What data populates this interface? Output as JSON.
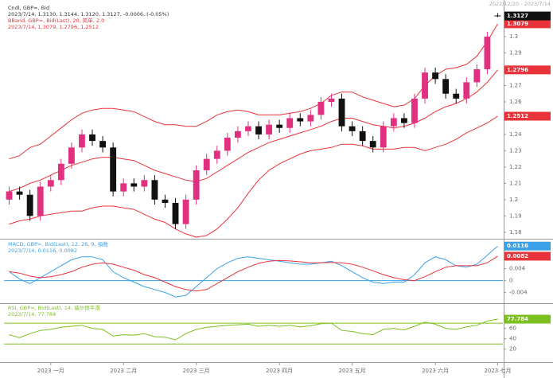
{
  "chart_data": [
    {
      "type": "candlestick",
      "title": "Cndl, GBP=, Bid",
      "subtitle": "2023/7/14, 1.3130, 1.3144, 1.3120, 1.3127, -0.0006, (-0.05%)",
      "bands_title": "BBand, GBP=, Bid(Last), 20, 简单, 2.0",
      "bands_subtitle": "2023/7/14, 1.3079, 1.2796, 1.2512",
      "date_range": "2022/12/20 - 2023/7/14",
      "up_color": "#e0307f",
      "down_color": "#111111",
      "categories": [
        null,
        null,
        null,
        null,
        "2023 一月",
        null,
        null,
        null,
        null,
        null,
        null,
        "2023 二月",
        null,
        null,
        null,
        null,
        null,
        null,
        "2023 三月",
        null,
        null,
        null,
        null,
        null,
        null,
        null,
        "2023 四月",
        null,
        null,
        null,
        null,
        null,
        null,
        "2023 五月",
        null,
        null,
        null,
        null,
        null,
        null,
        null,
        "2023 六月",
        null,
        null,
        null,
        null,
        null,
        "2023 七月"
      ],
      "open": [
        1.2,
        1.205,
        1.203,
        1.19,
        1.208,
        1.212,
        1.222,
        1.232,
        1.24,
        1.236,
        1.232,
        1.205,
        1.21,
        1.208,
        1.212,
        1.2,
        1.198,
        1.185,
        1.2,
        1.218,
        1.225,
        1.23,
        1.238,
        1.242,
        1.245,
        1.24,
        1.246,
        1.244,
        1.25,
        1.248,
        1.252,
        1.26,
        1.262,
        1.245,
        1.242,
        1.236,
        1.232,
        1.245,
        1.25,
        1.247,
        1.262,
        1.278,
        1.274,
        1.265,
        1.262,
        1.272,
        1.28,
        1.313
      ],
      "high": [
        1.208,
        1.208,
        1.206,
        1.211,
        1.215,
        1.225,
        1.235,
        1.243,
        1.243,
        1.239,
        1.235,
        1.213,
        1.213,
        1.215,
        1.215,
        1.203,
        1.201,
        1.203,
        1.221,
        1.228,
        1.233,
        1.241,
        1.245,
        1.248,
        1.248,
        1.249,
        1.249,
        1.253,
        1.253,
        1.255,
        1.263,
        1.265,
        1.265,
        1.248,
        1.245,
        1.239,
        1.248,
        1.253,
        1.253,
        1.265,
        1.281,
        1.281,
        1.277,
        1.268,
        1.275,
        1.283,
        1.303,
        1.3144
      ],
      "low": [
        1.197,
        1.2,
        1.187,
        1.187,
        1.205,
        1.209,
        1.219,
        1.229,
        1.233,
        1.229,
        1.202,
        1.202,
        1.205,
        1.205,
        1.197,
        1.195,
        1.182,
        1.182,
        1.197,
        1.215,
        1.222,
        1.227,
        1.235,
        1.239,
        1.237,
        1.237,
        1.241,
        1.241,
        1.245,
        1.245,
        1.249,
        1.257,
        1.242,
        1.239,
        1.233,
        1.229,
        1.229,
        1.242,
        1.244,
        1.244,
        1.259,
        1.271,
        1.262,
        1.259,
        1.259,
        1.269,
        1.277,
        1.312
      ],
      "close": [
        1.205,
        1.203,
        1.19,
        1.208,
        1.212,
        1.222,
        1.232,
        1.24,
        1.236,
        1.232,
        1.205,
        1.21,
        1.208,
        1.212,
        1.2,
        1.198,
        1.185,
        1.2,
        1.218,
        1.225,
        1.23,
        1.238,
        1.242,
        1.245,
        1.24,
        1.246,
        1.244,
        1.25,
        1.248,
        1.252,
        1.26,
        1.262,
        1.245,
        1.242,
        1.236,
        1.232,
        1.245,
        1.25,
        1.247,
        1.262,
        1.278,
        1.274,
        1.265,
        1.262,
        1.272,
        1.28,
        1.3,
        1.3127
      ],
      "bands": {
        "color": "#e8333a",
        "upper": [
          1.225,
          1.227,
          1.232,
          1.234,
          1.239,
          1.244,
          1.249,
          1.253,
          1.255,
          1.256,
          1.256,
          1.255,
          1.254,
          1.251,
          1.248,
          1.246,
          1.246,
          1.245,
          1.245,
          1.248,
          1.252,
          1.254,
          1.255,
          1.254,
          1.252,
          1.252,
          1.252,
          1.253,
          1.254,
          1.256,
          1.259,
          1.264,
          1.266,
          1.266,
          1.263,
          1.261,
          1.259,
          1.257,
          1.258,
          1.262,
          1.27,
          1.276,
          1.28,
          1.281,
          1.283,
          1.288,
          1.297,
          1.3079
        ],
        "middle": [
          1.205,
          1.207,
          1.21,
          1.212,
          1.215,
          1.218,
          1.221,
          1.223,
          1.225,
          1.226,
          1.226,
          1.225,
          1.224,
          1.221,
          1.218,
          1.216,
          1.214,
          1.212,
          1.211,
          1.213,
          1.217,
          1.221,
          1.225,
          1.229,
          1.232,
          1.235,
          1.237,
          1.239,
          1.241,
          1.243,
          1.245,
          1.248,
          1.25,
          1.25,
          1.248,
          1.246,
          1.245,
          1.244,
          1.245,
          1.247,
          1.25,
          1.254,
          1.257,
          1.259,
          1.262,
          1.266,
          1.272,
          1.2796
        ],
        "lower": [
          1.185,
          1.187,
          1.188,
          1.19,
          1.191,
          1.192,
          1.193,
          1.193,
          1.195,
          1.196,
          1.196,
          1.195,
          1.194,
          1.191,
          1.188,
          1.186,
          1.182,
          1.179,
          1.177,
          1.178,
          1.182,
          1.188,
          1.195,
          1.204,
          1.212,
          1.218,
          1.222,
          1.225,
          1.228,
          1.23,
          1.231,
          1.232,
          1.234,
          1.234,
          1.233,
          1.231,
          1.231,
          1.231,
          1.232,
          1.232,
          1.23,
          1.232,
          1.234,
          1.237,
          1.241,
          1.244,
          1.247,
          1.2512
        ]
      },
      "ylim": [
        1.176,
        1.3225
      ],
      "yticks": [
        1.18,
        1.19,
        1.2,
        1.21,
        1.22,
        1.23,
        1.24,
        1.25,
        1.26,
        1.27,
        1.28,
        1.29,
        1.3,
        1.31
      ]
    },
    {
      "type": "line",
      "title": "MACD, GBP=, Bid(Last), 12, 26, 9, 指数",
      "subtitle": "2023/7/14, 0.0116, 0.0082",
      "baseline": 0,
      "baseline_color": "#3aa0e8",
      "series": [
        {
          "color": "#3aa0e8",
          "values": [
            0.003,
            0.0005,
            -0.001,
            0.001,
            0.003,
            0.005,
            0.007,
            0.008,
            0.008,
            0.007,
            0.003,
            0.001,
            -0.0005,
            -0.002,
            -0.003,
            -0.004,
            -0.0055,
            -0.005,
            -0.002,
            0.001,
            0.004,
            0.006,
            0.0075,
            0.008,
            0.0075,
            0.007,
            0.0065,
            0.006,
            0.0055,
            0.0055,
            0.006,
            0.0065,
            0.005,
            0.003,
            0.001,
            -0.0005,
            -0.001,
            -0.0005,
            -0.0005,
            0.002,
            0.006,
            0.008,
            0.007,
            0.005,
            0.0045,
            0.0055,
            0.0085,
            0.0116
          ]
        },
        {
          "color": "#e8333a",
          "values": [
            0.003,
            0.0025,
            0.0015,
            0.001,
            0.0013,
            0.002,
            0.003,
            0.0045,
            0.0055,
            0.006,
            0.0055,
            0.0045,
            0.0035,
            0.002,
            0.001,
            -0.0005,
            -0.002,
            -0.003,
            -0.0035,
            -0.003,
            -0.001,
            0.001,
            0.003,
            0.0045,
            0.0058,
            0.0065,
            0.0068,
            0.0066,
            0.0063,
            0.006,
            0.006,
            0.0061,
            0.006,
            0.0055,
            0.0045,
            0.0033,
            0.002,
            0.001,
            0.0003,
            0,
            0.0013,
            0.003,
            0.0045,
            0.005,
            0.005,
            0.005,
            0.006,
            0.0082
          ]
        }
      ],
      "ylim": [
        -0.0076,
        0.0138
      ],
      "yticks": [
        -0.004,
        0,
        0.004,
        0.008
      ]
    },
    {
      "type": "line",
      "title": "RSI, GBP=, Bid(Last), 14, 威尔德平滑",
      "subtitle": "2023/7/14, 77.784",
      "levels": [
        70,
        30
      ],
      "levels_color": "#7cc020",
      "series": [
        {
          "color": "#7cc020",
          "values": [
            48,
            42,
            50,
            56,
            58,
            62,
            64,
            66,
            60,
            58,
            45,
            48,
            47,
            50,
            44,
            43,
            38,
            50,
            58,
            62,
            64,
            66,
            67,
            68,
            64,
            66,
            64,
            66,
            63,
            65,
            69,
            70,
            56,
            54,
            50,
            48,
            58,
            60,
            57,
            64,
            72,
            68,
            60,
            58,
            63,
            66,
            74,
            77.784
          ]
        }
      ],
      "ylim": [
        -5,
        107
      ],
      "yticks": [
        20,
        40,
        60,
        80
      ]
    }
  ]
}
